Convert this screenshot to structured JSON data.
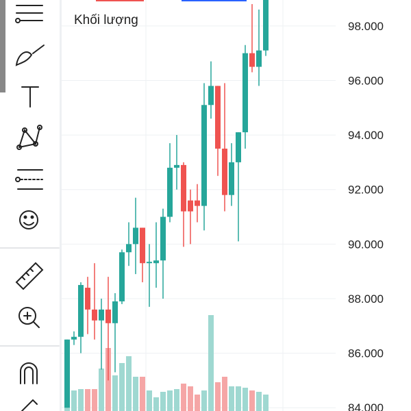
{
  "chart_data": {
    "type": "candlestick",
    "label": "Khối lượng",
    "up_color": "#26a69a",
    "down_color": "#ef5350",
    "up_volume_color": "#9fd8d1",
    "down_volume_color": "#f5a6a6",
    "ylim": [
      83880,
      98950
    ],
    "yticks": [
      {
        "value": 84000,
        "label": "84.000"
      },
      {
        "value": 86000,
        "label": "86.000"
      },
      {
        "value": 88000,
        "label": "88.000"
      },
      {
        "value": 90000,
        "label": "90.000"
      },
      {
        "value": 92000,
        "label": "92.000"
      },
      {
        "value": 94000,
        "label": "94.000"
      },
      {
        "value": 96000,
        "label": "96.000"
      },
      {
        "value": 98000,
        "label": "98.000"
      }
    ],
    "grid": true,
    "open": [
      84000,
      86500,
      86600,
      88400,
      87600,
      87200,
      87600,
      87100,
      87900,
      89700,
      90000,
      90600,
      89300,
      89300,
      89400,
      91000,
      92800,
      92900,
      91600,
      91600,
      91400,
      95100,
      95800,
      93500,
      91800,
      93000,
      94100,
      97000,
      96500,
      97100
    ],
    "close": [
      86500,
      86600,
      88500,
      87600,
      87200,
      87600,
      87100,
      87900,
      89700,
      90000,
      90600,
      89300,
      89350,
      89400,
      91000,
      92800,
      92900,
      91200,
      91200,
      91400,
      95100,
      95800,
      93500,
      91800,
      93000,
      94100,
      97000,
      96500,
      97100,
      99000
    ],
    "high": [
      86500,
      86800,
      88600,
      88800,
      89300,
      88000,
      88800,
      88200,
      89800,
      90800,
      91700,
      90600,
      90000,
      90800,
      91300,
      93700,
      94000,
      93000,
      92000,
      92200,
      95900,
      96700,
      95800,
      95900,
      93700,
      94100,
      97300,
      98800,
      98600,
      99000
    ],
    "low": [
      84000,
      86300,
      86000,
      86700,
      86500,
      85400,
      85000,
      85300,
      87800,
      89200,
      88900,
      88600,
      87700,
      88400,
      88000,
      90800,
      92000,
      89900,
      90000,
      90800,
      90500,
      94600,
      92500,
      91200,
      91400,
      90100,
      93500,
      96300,
      95800,
      96900
    ],
    "volume": [
      100,
      30,
      32,
      32,
      32,
      62,
      92,
      52,
      70,
      80,
      50,
      50,
      30,
      20,
      28,
      30,
      32,
      40,
      36,
      24,
      30,
      140,
      42,
      50,
      36,
      36,
      34,
      30,
      28,
      24
    ]
  }
}
